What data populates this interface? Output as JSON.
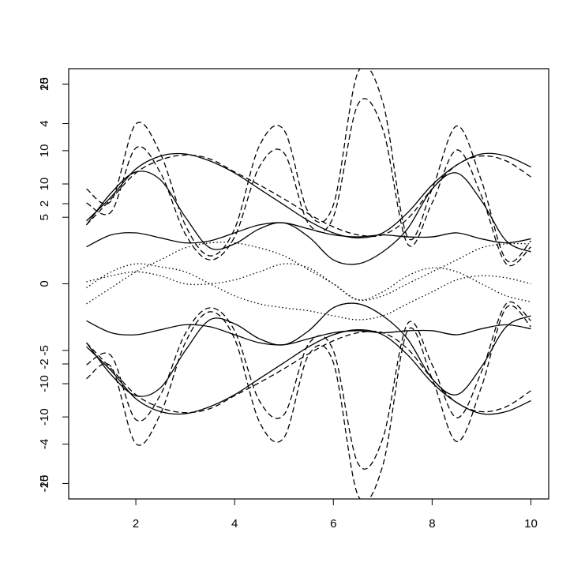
{
  "chart_data": {
    "type": "line",
    "x": [
      1,
      1.5,
      2,
      2.5,
      3,
      3.5,
      4,
      4.5,
      5,
      5.5,
      6,
      6.5,
      7,
      7.5,
      8,
      8.5,
      9,
      9.5,
      10
    ],
    "xlim": [
      0.64,
      10.36
    ],
    "xticks": [
      2,
      4,
      6,
      8,
      10
    ],
    "y_axes": [
      {
        "ylim": [
          -21.54,
          21.54
        ],
        "yticks": [
          -20,
          -10,
          0,
          10,
          20
        ]
      },
      {
        "ylim": [
          -16.16,
          16.16
        ],
        "yticks": [
          -15,
          -10,
          -5,
          5,
          10,
          15
        ]
      },
      {
        "ylim": [
          -5.37,
          5.37
        ],
        "yticks": [
          -4,
          -2,
          2,
          4
        ]
      }
    ],
    "series": [
      {
        "color": "#000000",
        "dash": "dashed",
        "values": [
          9.5,
          8.3,
          16.0,
          13.0,
          5.9,
          2.8,
          5.5,
          13.8,
          15.4,
          7.1,
          7.9,
          21.2,
          18.2,
          4.7,
          9.5,
          15.8,
          10.3,
          2.4,
          4.3
        ]
      },
      {
        "color": "#000000",
        "dash": "dashed",
        "values": [
          8.1,
          7.2,
          13.6,
          11.1,
          5.0,
          2.4,
          4.7,
          11.7,
          13.1,
          6.0,
          6.7,
          18.0,
          15.5,
          4.0,
          8.1,
          13.4,
          8.8,
          2.0,
          3.7
        ]
      },
      {
        "color": "#000000",
        "dash": "solid",
        "values": [
          6.3,
          8.7,
          11.5,
          12.8,
          13.0,
          12.3,
          11.1,
          9.5,
          7.9,
          6.3,
          5.1,
          4.6,
          5.1,
          7.1,
          9.9,
          11.9,
          13.0,
          12.8,
          11.7
        ]
      },
      {
        "color": "#000000",
        "dash": "dashed",
        "values": [
          5.9,
          8.5,
          11.1,
          12.4,
          12.9,
          12.5,
          11.2,
          9.9,
          8.5,
          7.0,
          5.7,
          4.9,
          4.9,
          6.5,
          9.5,
          11.9,
          12.8,
          12.3,
          10.7
        ]
      },
      {
        "color": "#000000",
        "dash": "solid",
        "values": [
          5.9,
          9.1,
          11.2,
          10.4,
          6.7,
          3.6,
          4.0,
          5.5,
          6.1,
          4.7,
          2.4,
          2.0,
          3.2,
          5.5,
          9.5,
          11.1,
          8.3,
          4.3,
          3.2
        ]
      },
      {
        "color": "#000000",
        "dash": "solid",
        "values": [
          3.7,
          4.9,
          5.1,
          4.6,
          4.1,
          4.3,
          5.1,
          5.9,
          6.1,
          5.5,
          4.9,
          4.7,
          4.9,
          4.7,
          4.7,
          5.1,
          4.5,
          4.1,
          4.5
        ]
      },
      {
        "color": "#000000",
        "dash": "dotted",
        "values": [
          -2.0,
          -0.4,
          1.2,
          2.4,
          3.6,
          4.1,
          4.1,
          3.6,
          2.8,
          1.4,
          0,
          -1.6,
          -1.2,
          0,
          1.2,
          2.4,
          3.6,
          4.0,
          4.0
        ]
      },
      {
        "color": "#000000",
        "dash": "dotted",
        "values": [
          -0.4,
          1.2,
          2.0,
          1.7,
          1.2,
          0,
          -1.2,
          -2.0,
          -2.4,
          -2.7,
          -3.2,
          -3.6,
          -3.2,
          -2.0,
          -0.8,
          0.4,
          0.8,
          0.6,
          0
        ]
      },
      {
        "color": "#000000",
        "dash": "dotted",
        "values": [
          0.2,
          0.8,
          1.2,
          0.8,
          0,
          0,
          0.4,
          1.2,
          2.0,
          1.6,
          0,
          -1.6,
          -0.8,
          0.8,
          1.6,
          1.2,
          0,
          -1.2,
          -1.8
        ]
      },
      {
        "color": "#000000",
        "dash": "dashed",
        "values": [
          -9.5,
          -8.3,
          -16.0,
          -13.0,
          -5.9,
          -2.8,
          -5.5,
          -13.8,
          -15.4,
          -7.1,
          -7.9,
          -21.2,
          -18.2,
          -4.7,
          -9.5,
          -15.8,
          -10.3,
          -2.4,
          -4.3
        ]
      },
      {
        "color": "#000000",
        "dash": "dashed",
        "values": [
          -8.1,
          -7.2,
          -13.6,
          -11.1,
          -5.0,
          -2.4,
          -4.7,
          -11.7,
          -13.1,
          -6.0,
          -6.7,
          -18.0,
          -15.5,
          -4.0,
          -8.1,
          -13.4,
          -8.8,
          -2.0,
          -3.7
        ]
      },
      {
        "color": "#000000",
        "dash": "solid",
        "values": [
          -6.3,
          -8.7,
          -11.5,
          -12.8,
          -13.0,
          -12.3,
          -11.1,
          -9.5,
          -7.9,
          -6.3,
          -5.1,
          -4.6,
          -5.1,
          -7.1,
          -9.9,
          -11.9,
          -13.0,
          -12.8,
          -11.7
        ]
      },
      {
        "color": "#000000",
        "dash": "dashed",
        "values": [
          -5.9,
          -8.5,
          -11.1,
          -12.4,
          -12.9,
          -12.5,
          -11.2,
          -9.9,
          -8.5,
          -7.0,
          -5.7,
          -4.9,
          -4.9,
          -6.5,
          -9.5,
          -11.9,
          -12.8,
          -12.3,
          -10.7
        ]
      },
      {
        "color": "#000000",
        "dash": "solid",
        "values": [
          -5.9,
          -9.1,
          -11.2,
          -10.4,
          -6.7,
          -3.6,
          -4.0,
          -5.5,
          -6.1,
          -4.7,
          -2.4,
          -2.0,
          -3.2,
          -5.5,
          -9.5,
          -11.1,
          -8.3,
          -4.3,
          -3.2
        ]
      },
      {
        "color": "#000000",
        "dash": "solid",
        "values": [
          -3.7,
          -4.9,
          -5.1,
          -4.6,
          -4.1,
          -4.3,
          -5.1,
          -5.9,
          -6.1,
          -5.5,
          -4.9,
          -4.7,
          -4.9,
          -4.7,
          -4.7,
          -5.1,
          -4.5,
          -4.1,
          -4.5
        ]
      }
    ]
  }
}
